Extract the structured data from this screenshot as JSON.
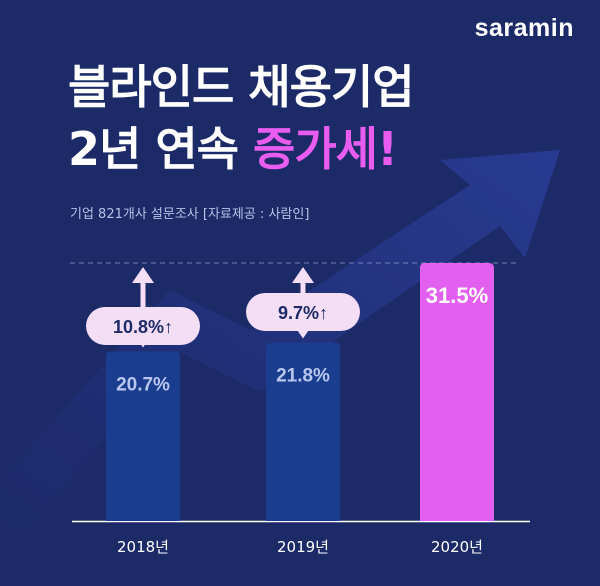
{
  "brand": {
    "logo_text": "saramin"
  },
  "headline": {
    "line1": "블라인드 채용기업",
    "line2_prefix": "2년 연속",
    "line2_accent": "증가세!"
  },
  "source_note": "기업 821개사 설문조사 [자료제공 : 사람인]",
  "colors": {
    "background": "#1c2a68",
    "bar": "#1a3d8f",
    "bar_highlight": "#e35ff0",
    "accent": "#e85cf0",
    "pill": "#f3def5",
    "arrow": "#f3def5"
  },
  "chart_data": {
    "type": "bar",
    "title": "",
    "xlabel": "",
    "ylabel": "",
    "categories": [
      "2018년",
      "2019년",
      "2020년"
    ],
    "values": [
      20.7,
      21.8,
      31.5
    ],
    "value_labels": [
      "20.7%",
      "21.8%",
      "31.5%"
    ],
    "highlight_index": 2,
    "growth_annotations": [
      {
        "from": "2018년",
        "text": "10.8%",
        "value": 10.8,
        "symbol": "↑"
      },
      {
        "from": "2019년",
        "text": "9.7%",
        "value": 9.7,
        "symbol": "↑"
      }
    ],
    "ylim": [
      0,
      31.5
    ],
    "grid": false,
    "reference_line": "dashed line at 2020 value",
    "legend": "none"
  }
}
